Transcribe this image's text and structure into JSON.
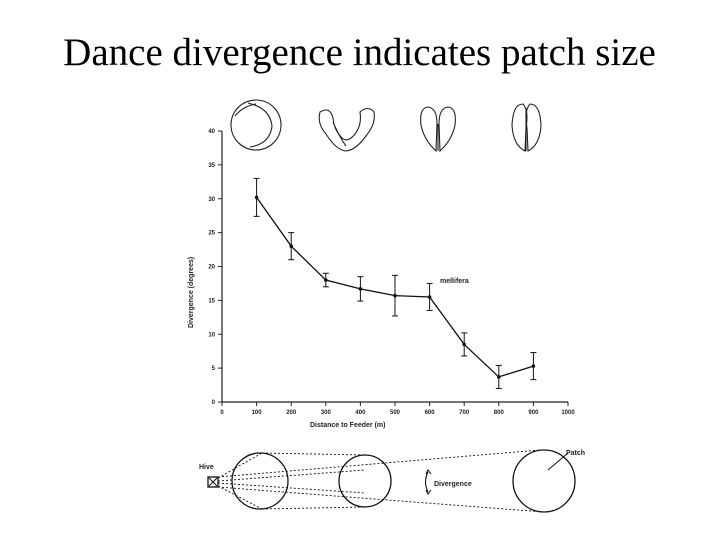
{
  "slide": {
    "title": "Dance divergence indicates patch size"
  },
  "chart_data": {
    "type": "line",
    "xlabel": "Distance to Feeder (m)",
    "ylabel": "Divergence (degrees)",
    "xlim": [
      0,
      1000
    ],
    "ylim": [
      0,
      40
    ],
    "x_ticks": [
      0,
      100,
      200,
      300,
      400,
      500,
      600,
      700,
      800,
      900,
      1000
    ],
    "y_ticks": [
      0,
      5,
      10,
      15,
      20,
      25,
      30,
      35,
      40
    ],
    "series": [
      {
        "name": "mellifera",
        "x": [
          100,
          200,
          300,
          400,
          500,
          600,
          700,
          800,
          900
        ],
        "y": [
          30.2,
          23.0,
          18.0,
          16.7,
          15.7,
          15.5,
          8.5,
          3.7,
          5.3
        ],
        "err": [
          2.8,
          2.0,
          1.0,
          1.8,
          3.0,
          2.0,
          1.7,
          1.7,
          2.0
        ]
      }
    ],
    "annotations": [
      "mellifera"
    ],
    "grid": false
  },
  "diagram": {
    "hive_label": "Hive",
    "divergence_label": "Divergence",
    "patch_label": "Patch"
  }
}
